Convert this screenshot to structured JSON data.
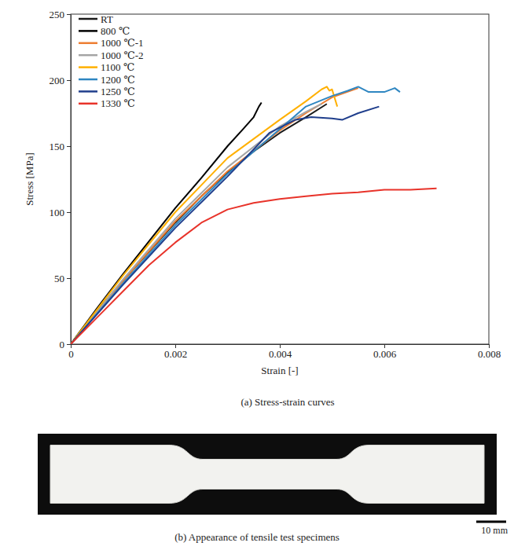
{
  "chart_data": {
    "type": "line",
    "title": "(a) Stress-strain curves",
    "x_label": "Strain [-]",
    "y_label": "Stress [MPa]",
    "xlim": [
      0,
      0.008
    ],
    "xticks": [
      0,
      0.002,
      0.004,
      0.006,
      0.008
    ],
    "ylim": [
      0,
      250
    ],
    "yticks": [
      0,
      50,
      100,
      150,
      200,
      250
    ],
    "legend": "upper left",
    "grid": false,
    "series": [
      {
        "name": "RT",
        "color": "#1a1a1a",
        "x": [
          0,
          0.0005,
          0.001,
          0.0015,
          0.002,
          0.0025,
          0.003,
          0.0035,
          0.004,
          0.0045,
          0.0049
        ],
        "values": [
          0,
          25,
          48,
          70,
          92,
          112,
          130,
          146,
          160,
          172,
          182
        ]
      },
      {
        "name": "800 ℃",
        "color": "#000000",
        "x": [
          0,
          0.0005,
          0.001,
          0.0015,
          0.002,
          0.0025,
          0.003,
          0.0033,
          0.0035,
          0.0036,
          0.00365
        ],
        "values": [
          0,
          27,
          53,
          78,
          103,
          126,
          150,
          163,
          172,
          180,
          183
        ]
      },
      {
        "name": "1000 ℃-1",
        "color": "#ed7d31",
        "x": [
          0,
          0.001,
          0.002,
          0.003,
          0.004,
          0.0045,
          0.005,
          0.0055
        ],
        "values": [
          0,
          48,
          93,
          131,
          162,
          175,
          187,
          194
        ]
      },
      {
        "name": "1000 ℃-2",
        "color": "#a5a5a5",
        "x": [
          0,
          0.001,
          0.002,
          0.003,
          0.004,
          0.0045,
          0.0048
        ],
        "values": [
          0,
          49,
          95,
          134,
          165,
          176,
          182
        ]
      },
      {
        "name": "1100 ℃",
        "color": "#ffb000",
        "x": [
          0,
          0.001,
          0.002,
          0.003,
          0.004,
          0.0045,
          0.0048,
          0.0049,
          0.00495,
          0.005,
          0.0051
        ],
        "values": [
          0,
          52,
          100,
          141,
          170,
          184,
          193,
          195,
          192,
          193,
          180
        ]
      },
      {
        "name": "1200 ℃",
        "color": "#2e86c1",
        "x": [
          0,
          0.001,
          0.002,
          0.003,
          0.004,
          0.0045,
          0.005,
          0.0053,
          0.0055,
          0.0057,
          0.006,
          0.0062,
          0.0063
        ],
        "values": [
          0,
          46,
          90,
          129,
          163,
          180,
          188,
          192,
          195,
          191,
          191,
          194,
          191
        ]
      },
      {
        "name": "1250 ℃",
        "color": "#1f3e8c",
        "x": [
          0,
          0.001,
          0.002,
          0.003,
          0.0038,
          0.0043,
          0.0046,
          0.005,
          0.0052,
          0.0055,
          0.0059
        ],
        "values": [
          0,
          45,
          88,
          127,
          160,
          170,
          172,
          171,
          170,
          175,
          180
        ]
      },
      {
        "name": "1330 ℃",
        "color": "#e8332a",
        "x": [
          0,
          0.0005,
          0.001,
          0.0015,
          0.002,
          0.0025,
          0.003,
          0.0035,
          0.004,
          0.0045,
          0.005,
          0.0055,
          0.006,
          0.0065,
          0.007
        ],
        "values": [
          0,
          20,
          40,
          60,
          77,
          92,
          102,
          107,
          110,
          112,
          114,
          115,
          117,
          117,
          118
        ]
      }
    ]
  },
  "specimen_figure": {
    "caption": "(b) Appearance of tensile test specimens",
    "scale_bar": "10 mm"
  }
}
